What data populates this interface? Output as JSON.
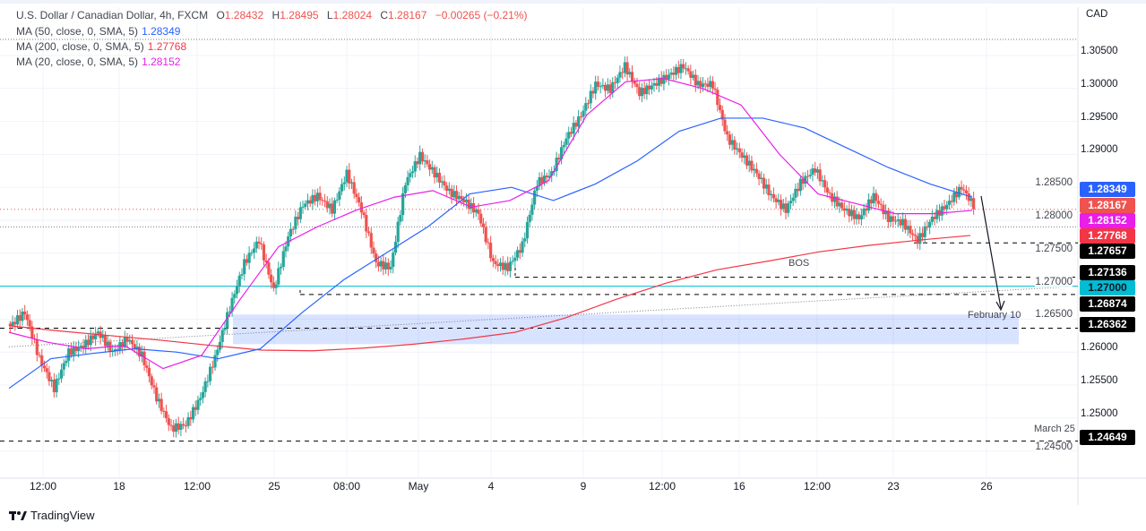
{
  "header": {
    "symbol": "U.S. Dollar / Canadian Dollar, 4h, FXCM",
    "o_label": "O",
    "o": "1.28432",
    "h_label": "H",
    "h": "1.28495",
    "l_label": "L",
    "l": "1.28024",
    "c_label": "C",
    "c": "1.28167",
    "change": "−0.00265 (−0.21%)"
  },
  "indicators": [
    {
      "label": "MA (50, close, 0, SMA, 5)",
      "value": "1.28349",
      "color": "#2962ff"
    },
    {
      "label": "MA (200, close, 0, SMA, 5)",
      "value": "1.27768",
      "color": "#f23645"
    },
    {
      "label": "MA (20, close, 0, SMA, 5)",
      "value": "1.28152",
      "color": "#e91ee8"
    }
  ],
  "currency": "CAD",
  "chart_data": {
    "type": "candlestick",
    "ylim": [
      1.2435,
      1.3085
    ],
    "y_ticks": [
      "1.30500",
      "1.30000",
      "1.29500",
      "1.29000",
      "1.28500",
      "1.28000",
      "1.27500",
      "1.27000",
      "1.26500",
      "1.26000",
      "1.25500",
      "1.25000",
      "1.24500"
    ],
    "x_ticks": [
      "12:00",
      "18",
      "12:00",
      "25",
      "08:00",
      "May",
      "4",
      "9",
      "12:00",
      "16",
      "12:00",
      "23",
      "26"
    ],
    "close_path": [
      1.264,
      1.266,
      1.259,
      1.2545,
      1.26,
      1.261,
      1.263,
      1.26,
      1.262,
      1.2595,
      1.2531,
      1.2484,
      1.249,
      1.2531,
      1.2592,
      1.2667,
      1.2735,
      1.277,
      1.2694,
      1.2776,
      1.2823,
      1.2837,
      1.2816,
      1.2871,
      1.2816,
      1.2735,
      1.2728,
      1.2857,
      1.2898,
      1.2871,
      1.2843,
      1.283,
      1.281,
      1.2735,
      1.2728,
      1.2762,
      1.2857,
      1.2871,
      1.2925,
      1.2959,
      1.3006,
      1.2999,
      1.3034,
      1.2993,
      1.3006,
      1.302,
      1.3034,
      1.3006,
      1.3006,
      1.2925,
      1.2898,
      1.2871,
      1.2837,
      1.2816,
      1.2857,
      1.2878,
      1.2837,
      1.2816,
      1.2803,
      1.2837,
      1.2803,
      1.2796,
      1.2769,
      1.2803,
      1.2823,
      1.285,
      1.2817
    ],
    "ma50": [
      1.2545,
      1.259,
      1.2598,
      1.2605,
      1.26,
      1.259,
      1.2605,
      1.266,
      1.271,
      1.275,
      1.279,
      1.284,
      1.285,
      1.283,
      1.2855,
      1.289,
      1.2935,
      1.2955,
      1.2955,
      1.294,
      1.291,
      1.288,
      1.2855,
      1.2835
    ],
    "ma200": [
      1.264,
      1.2632,
      1.2625,
      1.2618,
      1.261,
      1.2603,
      1.2602,
      1.2606,
      1.2612,
      1.262,
      1.263,
      1.2652,
      1.268,
      1.2705,
      1.2725,
      1.2738,
      1.2752,
      1.2762,
      1.277,
      1.2777
    ],
    "ma20": [
      1.263,
      1.2615,
      1.2605,
      1.261,
      1.2575,
      1.2595,
      1.268,
      1.276,
      1.279,
      1.2815,
      1.2835,
      1.2845,
      1.282,
      1.283,
      1.286,
      1.296,
      1.301,
      1.3015,
      1.3,
      1.2975,
      1.29,
      1.284,
      1.2825,
      1.281,
      1.281,
      1.2815
    ],
    "levels": [
      {
        "price": "1.27657",
        "color": "#000000",
        "style": "dashed"
      },
      {
        "price": "1.27136",
        "color": "#000000",
        "style": "dashed",
        "label": "BOS"
      },
      {
        "price": "1.27000",
        "color": "#00bcd4",
        "style": "solid"
      },
      {
        "price": "1.26874",
        "color": "#000000",
        "style": "dashed"
      },
      {
        "price": "1.26362",
        "color": "#000000",
        "style": "dashed",
        "label": "February 10"
      },
      {
        "price": "1.24649",
        "color": "#000000",
        "style": "dashed",
        "label": "March 25"
      }
    ],
    "price_tags": [
      {
        "value": "1.28349",
        "color": "#2962ff"
      },
      {
        "value": "1.28167",
        "color": "#ef5350"
      },
      {
        "value": "1.28152",
        "color": "#e91ee8"
      },
      {
        "value": "1.27768",
        "color": "#f23645"
      },
      {
        "value": "1.27657",
        "color": "#000000"
      },
      {
        "value": "1.27136",
        "color": "#000000"
      },
      {
        "value": "1.27000",
        "color": "#00bcd4"
      },
      {
        "value": "1.26874",
        "color": "#000000"
      },
      {
        "value": "1.26362",
        "color": "#000000"
      },
      {
        "value": "1.24649",
        "color": "#000000"
      }
    ],
    "zone": [
      1.2612,
      1.2657
    ],
    "up_color": "#26a69a",
    "down_color": "#ef5350"
  },
  "annotations": {
    "bos": "BOS",
    "feb": "February 10",
    "mar": "March 25"
  },
  "footer": {
    "brand": "TradingView"
  }
}
